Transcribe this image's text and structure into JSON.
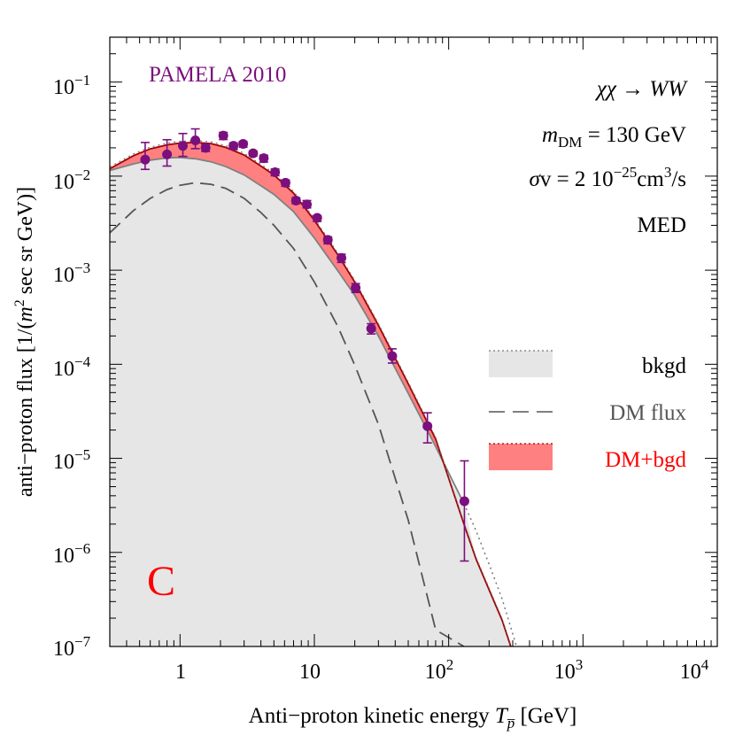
{
  "chart_data": {
    "type": "line",
    "title": "PAMELA 2010",
    "panel_label": "C",
    "xlabel": {
      "main": "Anti−proton kinetic energy ",
      "symbol": "T",
      "sub": "p̅",
      "unit": " [GeV]"
    },
    "ylabel": {
      "pre": "anti−proton flux [1/(",
      "m": "m",
      "exp": "2",
      "post": " sec sr GeV)]"
    },
    "xscale": "log",
    "yscale": "log",
    "xlim": [
      0.3,
      10000
    ],
    "ylim": [
      1e-07,
      0.3
    ],
    "xticks": [
      {
        "base": "1",
        "exp": ""
      },
      {
        "base": "10",
        "exp": ""
      },
      {
        "base": "10",
        "exp": "2"
      },
      {
        "base": "10",
        "exp": "3"
      },
      {
        "base": "10",
        "exp": "4"
      }
    ],
    "yticks": [
      {
        "base": "10",
        "exp": "−1"
      },
      {
        "base": "10",
        "exp": "−2"
      },
      {
        "base": "10",
        "exp": "−3"
      },
      {
        "base": "10",
        "exp": "−4"
      },
      {
        "base": "10",
        "exp": "−5"
      },
      {
        "base": "10",
        "exp": "−6"
      },
      {
        "base": "10",
        "exp": "−7"
      }
    ],
    "annotations": {
      "process": "χχ → WW",
      "mass_sym": "m",
      "mass_sub": "DM",
      "mass_val": " = 130 GeV",
      "sigma_sym": "σ",
      "sigma_pre": "v = 2 10",
      "sigma_exp": "−25",
      "sigma_unit": "cm",
      "sigma_unit_exp": "3",
      "sigma_post": "/s",
      "model": "MED"
    },
    "legend": {
      "position": "right",
      "entries": [
        {
          "label": "bkgd",
          "color": "#000000"
        },
        {
          "label": "DM flux",
          "color": "#555555"
        },
        {
          "label": "DM+bgd",
          "color": "#ff0000"
        }
      ]
    },
    "colors": {
      "background_fill": "#e6e6e6",
      "background_line": "#808080",
      "background_dotted": "#777777",
      "total_fill": "#ff8080",
      "total_line": "#a00000",
      "dm_line": "#555555",
      "data": "#7b0f7e",
      "panel_label": "#ff0000"
    },
    "series": [
      {
        "name": "bkgd",
        "style": "filled_solid_with_dotted_upper_extension",
        "x": [
          0.3,
          0.45,
          0.6,
          0.8,
          1.0,
          1.3,
          1.7,
          2.2,
          3,
          4,
          5,
          7,
          10,
          15,
          20,
          30,
          50,
          80,
          130
        ],
        "y": [
          0.0115,
          0.0135,
          0.0148,
          0.0156,
          0.0158,
          0.0153,
          0.0142,
          0.0126,
          0.0103,
          0.0079,
          0.0064,
          0.0042,
          0.0022,
          0.00098,
          0.00054,
          0.0002,
          4.9e-05,
          1.33e-05,
          3.3e-06
        ]
      },
      {
        "name": "bkgd_dotted_tail",
        "style": "dotted",
        "x": [
          130,
          160,
          200,
          250,
          320
        ],
        "y": [
          3.3e-06,
          1.7e-06,
          7.5e-07,
          3.2e-07,
          1e-07
        ]
      },
      {
        "name": "DM flux",
        "style": "dashed",
        "x": [
          0.3,
          0.45,
          0.6,
          0.8,
          1.0,
          1.3,
          1.7,
          2.2,
          3,
          4,
          5,
          7,
          10,
          15,
          20,
          30,
          50,
          80,
          130
        ],
        "y": [
          0.0025,
          0.0043,
          0.0058,
          0.0072,
          0.008,
          0.0085,
          0.0082,
          0.0074,
          0.0058,
          0.0041,
          0.003,
          0.0017,
          0.00075,
          0.00025,
          9.8e-05,
          2.3e-05,
          2.2e-06,
          1.5e-07,
          1e-07
        ]
      },
      {
        "name": "DM+bgd",
        "style": "filled_band_solid",
        "x": [
          0.3,
          0.45,
          0.6,
          0.8,
          1.0,
          1.3,
          1.7,
          2.2,
          3,
          4,
          5,
          7,
          10,
          15,
          20,
          30,
          50,
          80,
          130,
          160,
          200,
          250,
          290
        ],
        "y": [
          0.012,
          0.0165,
          0.0195,
          0.0215,
          0.0225,
          0.0228,
          0.0222,
          0.0202,
          0.0168,
          0.0128,
          0.0103,
          0.0066,
          0.0034,
          0.00145,
          0.00075,
          0.00026,
          6.2e-05,
          1.6e-05,
          2e-06,
          8.5e-07,
          4e-07,
          1.9e-07,
          1e-07
        ]
      }
    ],
    "data_points": {
      "name": "PAMELA 2010",
      "x": [
        0.55,
        0.8,
        1.05,
        1.3,
        1.55,
        2.1,
        2.5,
        2.95,
        3.5,
        4.2,
        5.1,
        6.1,
        7.3,
        8.8,
        10.5,
        12.6,
        15.9,
        20.3,
        26.5,
        38.0,
        69.5,
        131.0
      ],
      "y": [
        0.015,
        0.017,
        0.021,
        0.024,
        0.02,
        0.027,
        0.021,
        0.022,
        0.0175,
        0.0155,
        0.011,
        0.0085,
        0.0055,
        0.005,
        0.0036,
        0.0021,
        0.00135,
        0.00065,
        0.00024,
        0.000122,
        2.2e-05,
        3.5e-06
      ],
      "err_low": [
        0.0118,
        0.0128,
        0.0162,
        0.0196,
        0.0183,
        0.0245,
        0.0193,
        0.0203,
        0.0163,
        0.0141,
        0.0101,
        0.0078,
        0.0051,
        0.0046,
        0.0033,
        0.00191,
        0.00121,
        0.00058,
        0.00021,
        0.000103,
        1.46e-05,
        8.1e-07
      ],
      "err_high": [
        0.0228,
        0.0244,
        0.0284,
        0.0318,
        0.0218,
        0.0292,
        0.0226,
        0.0234,
        0.0185,
        0.0167,
        0.0119,
        0.0091,
        0.0059,
        0.0055,
        0.0038,
        0.00226,
        0.00148,
        0.00072,
        0.00027,
        0.000146,
        3.05e-05,
        9.4e-06
      ]
    }
  }
}
